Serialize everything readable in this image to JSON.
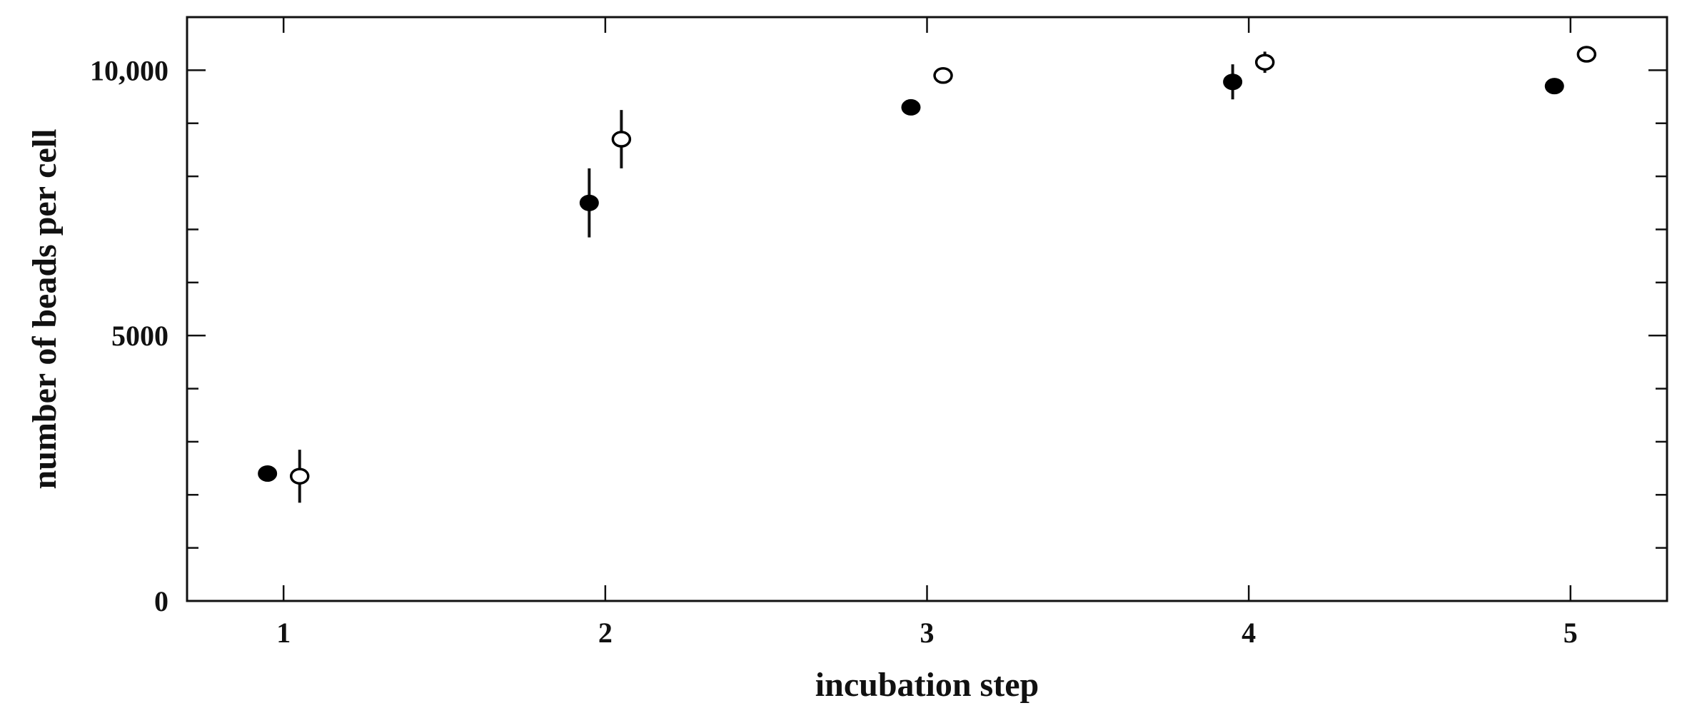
{
  "chart_data": {
    "type": "scatter",
    "title": "",
    "xlabel": "incubation step",
    "ylabel": "number of beads per cell",
    "xlim": [
      0.7,
      5.3
    ],
    "ylim": [
      0,
      11000
    ],
    "x_ticks": [
      1,
      2,
      3,
      4,
      5
    ],
    "x_tick_labels": [
      "1",
      "2",
      "3",
      "4",
      "5"
    ],
    "y_ticks": [
      0,
      5000,
      10000
    ],
    "y_tick_labels": [
      "0",
      "5000",
      "10,000"
    ],
    "y_minor_step": 1000,
    "grid": false,
    "legend": "none",
    "series": [
      {
        "marker": "filled-circle",
        "points": [
          {
            "x": 0.95,
            "y": 2400,
            "err": 0
          },
          {
            "x": 1.95,
            "y": 7500,
            "err": 650
          },
          {
            "x": 2.95,
            "y": 9300,
            "err": 80
          },
          {
            "x": 3.95,
            "y": 9780,
            "err": 330
          },
          {
            "x": 4.95,
            "y": 9700,
            "err": 120
          }
        ]
      },
      {
        "marker": "open-circle",
        "points": [
          {
            "x": 1.05,
            "y": 2350,
            "err": 500
          },
          {
            "x": 2.05,
            "y": 8700,
            "err": 550
          },
          {
            "x": 3.05,
            "y": 9900,
            "err": 130
          },
          {
            "x": 4.05,
            "y": 10150,
            "err": 200
          },
          {
            "x": 5.05,
            "y": 10300,
            "err": 100
          }
        ]
      }
    ]
  }
}
